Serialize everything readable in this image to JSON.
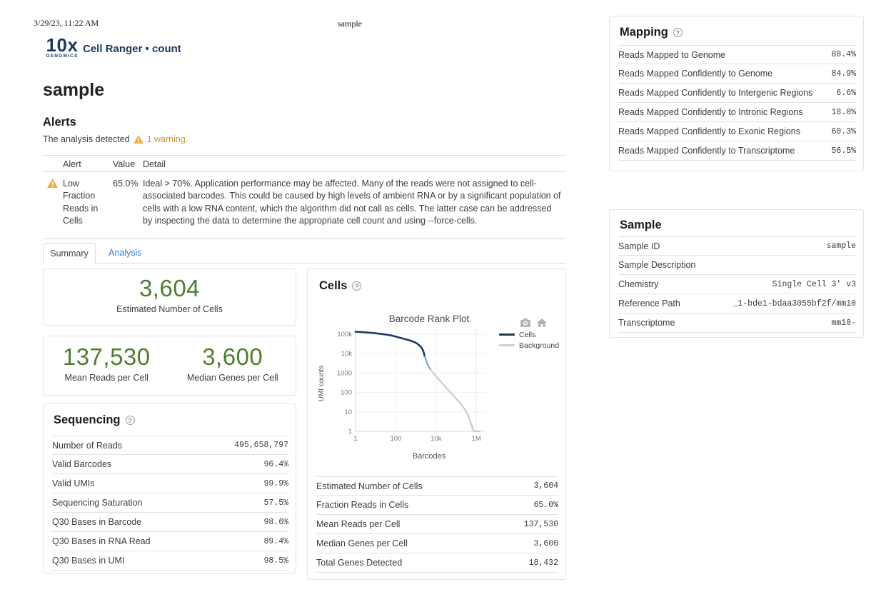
{
  "print_header": {
    "timestamp": "3/29/23, 11:22 AM",
    "title": "sample"
  },
  "app": {
    "logo_line1": "10x",
    "logo_line2": "GENOMICS",
    "pipeline": "Cell Ranger • count"
  },
  "page_title": "sample",
  "alerts": {
    "heading": "Alerts",
    "intro_prefix": "The analysis detected",
    "warning_count_text": "1 warning.",
    "headers": {
      "alert": "Alert",
      "value": "Value",
      "detail": "Detail"
    },
    "rows": [
      {
        "alert": "Low Fraction Reads in Cells",
        "value": "65.0%",
        "detail": "Ideal > 70%. Application performance may be affected. Many of the reads were not assigned to cell-associated barcodes. This could be caused by high levels of ambient RNA or by a significant population of cells with a low RNA content, which the algorithm did not call as cells. The latter case can be addressed by inspecting the data to determine the appropriate cell count and using --force-cells."
      }
    ]
  },
  "tabs": [
    {
      "label": "Summary",
      "active": true
    },
    {
      "label": "Analysis",
      "active": false
    }
  ],
  "hero": {
    "cells": {
      "value": "3,604",
      "label": "Estimated Number of Cells"
    },
    "mean_reads": {
      "value": "137,530",
      "label": "Mean Reads per Cell"
    },
    "median_genes": {
      "value": "3,600",
      "label": "Median Genes per Cell"
    }
  },
  "sequencing": {
    "heading": "Sequencing",
    "rows": [
      {
        "label": "Number of Reads",
        "value": "495,658,797"
      },
      {
        "label": "Valid Barcodes",
        "value": "96.4%"
      },
      {
        "label": "Valid UMIs",
        "value": "99.9%"
      },
      {
        "label": "Sequencing Saturation",
        "value": "57.5%"
      },
      {
        "label": "Q30 Bases in Barcode",
        "value": "98.6%"
      },
      {
        "label": "Q30 Bases in RNA Read",
        "value": "89.4%"
      },
      {
        "label": "Q30 Bases in UMI",
        "value": "98.5%"
      }
    ]
  },
  "cells_panel": {
    "heading": "Cells",
    "rows": [
      {
        "label": "Estimated Number of Cells",
        "value": "3,604"
      },
      {
        "label": "Fraction Reads in Cells",
        "value": "65.0%"
      },
      {
        "label": "Mean Reads per Cell",
        "value": "137,530"
      },
      {
        "label": "Median Genes per Cell",
        "value": "3,600"
      },
      {
        "label": "Total Genes Detected",
        "value": "18,432"
      }
    ]
  },
  "mapping": {
    "heading": "Mapping",
    "rows": [
      {
        "label": "Reads Mapped to Genome",
        "value": "88.4%"
      },
      {
        "label": "Reads Mapped Confidently to Genome",
        "value": "84.9%"
      },
      {
        "label": "Reads Mapped Confidently to Intergenic Regions",
        "value": "6.6%"
      },
      {
        "label": "Reads Mapped Confidently to Intronic Regions",
        "value": "18.0%"
      },
      {
        "label": "Reads Mapped Confidently to Exonic Regions",
        "value": "60.3%"
      },
      {
        "label": "Reads Mapped Confidently to Transcriptome",
        "value": "56.5%"
      }
    ]
  },
  "sample_info": {
    "heading": "Sample",
    "rows": [
      {
        "label": "Sample ID",
        "value": "sample"
      },
      {
        "label": "Sample Description",
        "value": ""
      },
      {
        "label": "Chemistry",
        "value": "Single Cell 3' v3"
      },
      {
        "label": "Reference Path",
        "value": "_1-bde1-bdaa3055bf2f/mm10"
      },
      {
        "label": "Transcriptome",
        "value": "mm10-"
      }
    ]
  },
  "chart_data": {
    "type": "line",
    "title": "Barcode Rank Plot",
    "xlabel": "Barcodes",
    "ylabel": "UMI counts",
    "x_scale": "log",
    "y_scale": "log",
    "xlim": [
      1,
      3000000
    ],
    "ylim": [
      1,
      220000
    ],
    "x_tick_values": [
      1,
      100,
      10000,
      1000000
    ],
    "x_tick_labels": [
      "1",
      "100",
      "10k",
      "1M"
    ],
    "y_tick_values": [
      1,
      10,
      100,
      1000,
      10000,
      100000
    ],
    "y_tick_labels": [
      "1",
      "10",
      "100",
      "1000",
      "10k",
      "100k"
    ],
    "grid": true,
    "legend_position": "right",
    "legend": [
      {
        "name": "Cells",
        "color": "#1c3a5e"
      },
      {
        "name": "Background",
        "color": "#c9cdd2"
      }
    ],
    "series": [
      {
        "name": "Cells",
        "color": "#1c3a5e",
        "width": 2.6,
        "points": [
          [
            1,
            135000
          ],
          [
            3,
            125000
          ],
          [
            6,
            118000
          ],
          [
            10,
            112000
          ],
          [
            20,
            103000
          ],
          [
            40,
            93000
          ],
          [
            70,
            83000
          ],
          [
            100,
            75000
          ],
          [
            150,
            67000
          ],
          [
            250,
            58000
          ],
          [
            400,
            51000
          ],
          [
            600,
            45000
          ],
          [
            900,
            38000
          ],
          [
            1300,
            30000
          ],
          [
            1700,
            23000
          ],
          [
            2100,
            17000
          ],
          [
            2400,
            12000
          ],
          [
            2600,
            9000
          ],
          [
            2750,
            7000
          ]
        ]
      },
      {
        "name": "Transition",
        "color": "#6fa8dc",
        "width": 2.2,
        "points": [
          [
            2750,
            7000
          ],
          [
            3200,
            4500
          ],
          [
            3800,
            2800
          ],
          [
            4600,
            1900
          ],
          [
            5500,
            1450
          ]
        ]
      },
      {
        "name": "Background",
        "color": "#c9cdd2",
        "width": 2.2,
        "points": [
          [
            5500,
            1450
          ],
          [
            8000,
            900
          ],
          [
            12000,
            550
          ],
          [
            20000,
            300
          ],
          [
            35000,
            160
          ],
          [
            60000,
            85
          ],
          [
            100000,
            48
          ],
          [
            150000,
            30
          ],
          [
            220000,
            18
          ],
          [
            300000,
            11
          ],
          [
            380000,
            7
          ],
          [
            450000,
            4.5
          ],
          [
            520000,
            3
          ],
          [
            560000,
            2
          ],
          [
            590000,
            2.2
          ],
          [
            620000,
            1.5
          ],
          [
            660000,
            1.7
          ],
          [
            700000,
            1.2
          ],
          [
            800000,
            1
          ],
          [
            1000000,
            1
          ],
          [
            1400000,
            1
          ]
        ]
      }
    ]
  },
  "colors": {
    "navy": "#1c3a5e",
    "green": "#4e7d2e",
    "link_blue": "#2b7de9",
    "warning_text": "#c9992c",
    "warning_icon": "#ecaf3c",
    "background_line": "#c9cdd2",
    "transition_line": "#6fa8dc"
  }
}
